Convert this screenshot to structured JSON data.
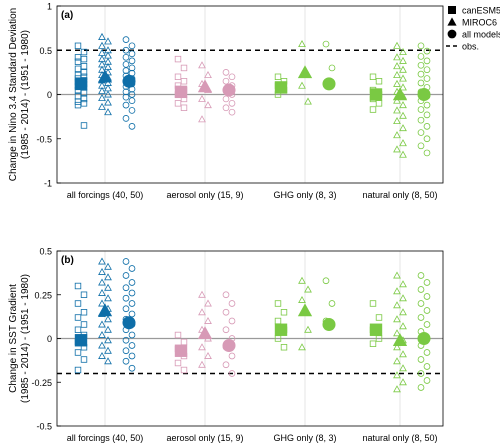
{
  "chart_data": [
    {
      "type": "scatter",
      "panel_label": "(a)",
      "ylabel_lines": [
        "Change in Nino 3.4 Standard Deviation",
        "(1985 - 2014) - (1951 - 1980)"
      ],
      "ylim": [
        -1,
        1
      ],
      "yticks": [
        "1",
        "0.5",
        "0",
        "-0.5",
        "-1"
      ],
      "ytick_values": [
        1,
        0.5,
        0,
        -0.5,
        -1
      ],
      "obs_value": 0.5,
      "categories": [
        "all forcings (40, 50)",
        "aerosol only (15, 9)",
        "GHG only (8, 3)",
        "natural only (8, 50)"
      ],
      "groups": [
        {
          "color": "#0e6ea8",
          "canESM5": {
            "members": [
              0.55,
              0.48,
              0.42,
              0.4,
              0.37,
              0.32,
              0.29,
              0.25,
              0.22,
              0.2,
              0.18,
              0.16,
              0.14,
              0.12,
              0.1,
              0.08,
              0.05,
              0.02,
              -0.02,
              -0.05,
              -0.08,
              -0.1,
              -0.12,
              -0.35
            ],
            "mean": 0.12
          },
          "MIROC6": {
            "members": [
              0.65,
              0.6,
              0.55,
              0.5,
              0.47,
              0.44,
              0.4,
              0.37,
              0.34,
              0.31,
              0.28,
              0.25,
              0.22,
              0.19,
              0.16,
              0.13,
              0.1,
              0.07,
              0.04,
              0.0,
              -0.04,
              -0.09,
              -0.14,
              -0.2
            ],
            "mean": 0.2
          },
          "all_models": {
            "members": [
              0.62,
              0.55,
              0.5,
              0.46,
              0.42,
              0.38,
              0.34,
              0.3,
              0.27,
              0.24,
              0.21,
              0.18,
              0.15,
              0.12,
              0.09,
              0.06,
              0.03,
              0.0,
              -0.03,
              -0.07,
              -0.12,
              -0.18,
              -0.27,
              -0.36
            ],
            "mean": 0.15
          }
        },
        {
          "color": "#d79ab6",
          "canESM5": {
            "members": [
              0.4,
              0.3,
              0.2,
              0.15,
              0.1,
              0.05,
              0.0,
              -0.05,
              -0.1,
              -0.15
            ],
            "mean": 0.03
          },
          "MIROC6": {
            "members": [
              0.33,
              0.22,
              0.12,
              0.05,
              -0.05,
              -0.12,
              -0.28
            ],
            "mean": 0.09
          },
          "all_models": {
            "members": [
              0.25,
              0.2,
              0.15,
              0.1,
              0.05,
              0.0,
              -0.05,
              -0.1,
              -0.15,
              -0.2
            ],
            "mean": 0.05
          }
        },
        {
          "color": "#7ac943",
          "canESM5": {
            "members": [
              0.2,
              0.15,
              0.1,
              0.05,
              0.0
            ],
            "mean": 0.08
          },
          "MIROC6": {
            "members": [
              0.57,
              0.22,
              0.1,
              -0.08
            ],
            "mean": 0.25
          },
          "all_models": {
            "members": [
              0.57,
              0.3,
              0.12
            ],
            "mean": 0.12
          }
        },
        {
          "color": "#7ac943",
          "canESM5": {
            "members": [
              0.2,
              0.15,
              0.05,
              0.0,
              -0.05,
              -0.1,
              -0.17
            ],
            "mean": 0.0
          },
          "MIROC6": {
            "members": [
              0.55,
              0.48,
              0.42,
              0.38,
              0.32,
              0.28,
              0.22,
              0.18,
              0.12,
              0.08,
              0.03,
              -0.02,
              -0.07,
              -0.12,
              -0.18,
              -0.24,
              -0.3,
              -0.38,
              -0.46,
              -0.55,
              -0.62,
              -0.68
            ],
            "mean": 0.0
          },
          "all_models": {
            "members": [
              0.55,
              0.49,
              0.43,
              0.38,
              0.33,
              0.28,
              0.23,
              0.18,
              0.13,
              0.08,
              0.03,
              -0.02,
              -0.07,
              -0.12,
              -0.17,
              -0.23,
              -0.29,
              -0.36,
              -0.43,
              -0.5,
              -0.58,
              -0.66
            ],
            "mean": 0.0
          }
        }
      ]
    },
    {
      "type": "scatter",
      "panel_label": "(b)",
      "ylabel_lines": [
        "Change in SST Gradient",
        "(1985 - 2014) - (1951 - 1980)"
      ],
      "ylim": [
        -0.5,
        0.5
      ],
      "yticks": [
        "0.5",
        "0.25",
        "0",
        "-0.25",
        "-0.5"
      ],
      "ytick_values": [
        0.5,
        0.25,
        0,
        -0.25,
        -0.5
      ],
      "obs_value": -0.2,
      "categories": [
        "all forcings (40, 50)",
        "aerosol only (15, 9)",
        "GHG only (8, 3)",
        "natural only (8, 50)"
      ],
      "groups": [
        {
          "color": "#0e6ea8",
          "canESM5": {
            "members": [
              0.3,
              0.25,
              0.2,
              0.15,
              0.12,
              0.08,
              0.05,
              0.02,
              -0.02,
              -0.05,
              -0.08,
              -0.12,
              -0.18
            ],
            "mean": -0.01
          },
          "MIROC6": {
            "members": [
              0.44,
              0.41,
              0.38,
              0.35,
              0.32,
              0.29,
              0.26,
              0.23,
              0.2,
              0.17,
              0.14,
              0.11,
              0.08,
              0.05,
              0.02,
              -0.01,
              -0.04,
              -0.07,
              -0.1,
              -0.13
            ],
            "mean": 0.16
          },
          "all_models": {
            "members": [
              0.44,
              0.4,
              0.36,
              0.32,
              0.29,
              0.26,
              0.23,
              0.2,
              0.17,
              0.14,
              0.11,
              0.08,
              0.05,
              0.02,
              -0.01,
              -0.04,
              -0.07,
              -0.1,
              -0.13,
              -0.17
            ],
            "mean": 0.09
          }
        },
        {
          "color": "#d79ab6",
          "canESM5": {
            "members": [
              0.02,
              -0.02,
              -0.06,
              -0.1,
              -0.14,
              -0.18
            ],
            "mean": -0.07
          },
          "MIROC6": {
            "members": [
              0.25,
              0.2,
              0.15,
              0.1,
              0.05,
              0.0,
              -0.05,
              -0.1,
              -0.15
            ],
            "mean": 0.03
          },
          "all_models": {
            "members": [
              0.25,
              0.2,
              0.15,
              0.1,
              0.05,
              0.0,
              -0.05,
              -0.1,
              -0.15,
              -0.2
            ],
            "mean": -0.04
          }
        },
        {
          "color": "#7ac943",
          "canESM5": {
            "members": [
              0.2,
              0.15,
              0.1,
              0.05,
              0.0,
              -0.05
            ],
            "mean": 0.05
          },
          "MIROC6": {
            "members": [
              0.33,
              0.28,
              0.22,
              0.05,
              -0.05
            ],
            "mean": 0.16
          },
          "all_models": {
            "members": [
              0.33,
              0.2,
              0.1
            ],
            "mean": 0.08
          }
        },
        {
          "color": "#7ac943",
          "canESM5": {
            "members": [
              0.2,
              0.12,
              0.05,
              0.0,
              -0.03
            ],
            "mean": 0.05
          },
          "MIROC6": {
            "members": [
              0.36,
              0.31,
              0.27,
              0.23,
              0.19,
              0.15,
              0.11,
              0.07,
              0.03,
              -0.01,
              -0.05,
              -0.09,
              -0.13,
              -0.17,
              -0.21,
              -0.25,
              -0.29
            ],
            "mean": -0.01
          },
          "all_models": {
            "members": [
              0.36,
              0.32,
              0.28,
              0.24,
              0.2,
              0.16,
              0.12,
              0.08,
              0.04,
              0.0,
              -0.04,
              -0.08,
              -0.12,
              -0.16,
              -0.2,
              -0.24,
              -0.28
            ],
            "mean": 0.0
          }
        }
      ]
    }
  ],
  "legend": {
    "items": [
      {
        "label": "canESM5",
        "marker": "square"
      },
      {
        "label": "MIROC6",
        "marker": "triangle"
      },
      {
        "label": "all models",
        "marker": "circle"
      },
      {
        "label": "obs.",
        "marker": "dashed-line"
      }
    ]
  }
}
